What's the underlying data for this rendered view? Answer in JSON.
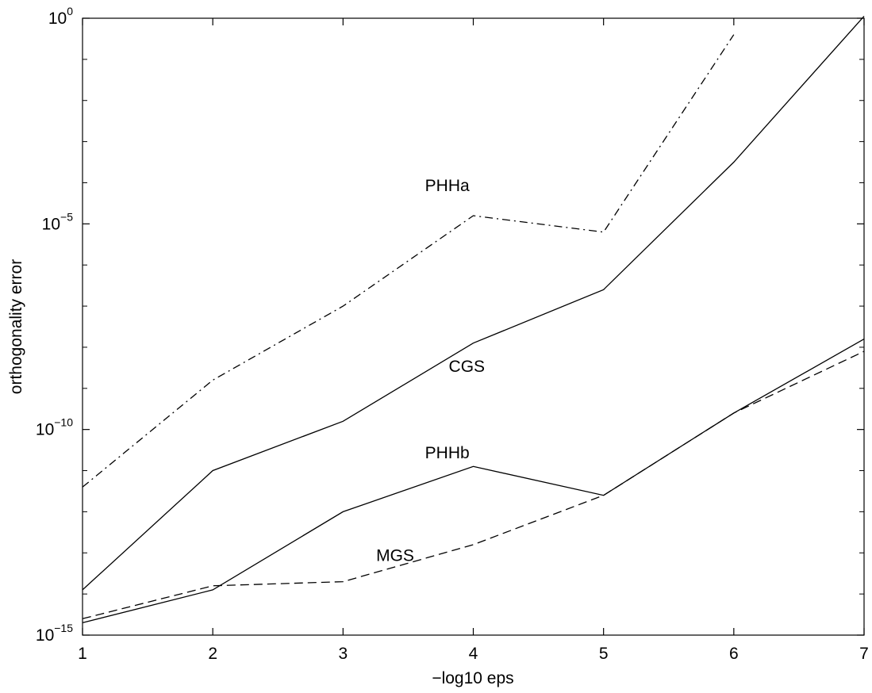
{
  "chart_data": {
    "type": "line",
    "title": "",
    "xlabel": "−log10 eps",
    "ylabel": "orthogonality error",
    "xlim": [
      1,
      7
    ],
    "ylim_log10": [
      -15,
      0
    ],
    "yscale": "log",
    "grid": false,
    "x_ticks": [
      "1",
      "2",
      "3",
      "4",
      "5",
      "6",
      "7"
    ],
    "y_ticks": [
      {
        "base": "10",
        "exp": "0",
        "log10": 0
      },
      {
        "base": "10",
        "exp": "−5",
        "log10": -5
      },
      {
        "base": "10",
        "exp": "−10",
        "log10": -10
      },
      {
        "base": "10",
        "exp": "−15",
        "log10": -15
      }
    ],
    "series": [
      {
        "name": "PHHa",
        "style": "dash-dot",
        "x": [
          1,
          2,
          3,
          4,
          5,
          6
        ],
        "log10_y": [
          -11.4,
          -8.8,
          -7.0,
          -4.8,
          -5.2,
          -0.4
        ]
      },
      {
        "name": "CGS",
        "style": "solid",
        "x": [
          1,
          2,
          3,
          4,
          5,
          6,
          7
        ],
        "log10_y": [
          -13.9,
          -11.0,
          -9.8,
          -7.9,
          -6.6,
          -3.5,
          0.05
        ]
      },
      {
        "name": "PHHb",
        "style": "solid",
        "x": [
          1,
          2,
          3,
          4,
          5,
          6,
          7
        ],
        "log10_y": [
          -14.7,
          -13.9,
          -12.0,
          -10.9,
          -11.6,
          -9.6,
          -7.8
        ]
      },
      {
        "name": "MGS",
        "style": "dashed",
        "x": [
          1,
          2,
          3,
          4,
          5,
          6,
          7
        ],
        "log10_y": [
          -14.6,
          -13.8,
          -13.7,
          -12.8,
          -11.6,
          -9.6,
          -8.1
        ]
      }
    ],
    "annotations": [
      {
        "text": "PHHa",
        "x": 3.8,
        "log10_y": -4.2
      },
      {
        "text": "CGS",
        "x": 3.95,
        "log10_y": -8.6
      },
      {
        "text": "PHHb",
        "x": 3.8,
        "log10_y": -10.7
      },
      {
        "text": "MGS",
        "x": 3.4,
        "log10_y": -13.2
      }
    ]
  }
}
